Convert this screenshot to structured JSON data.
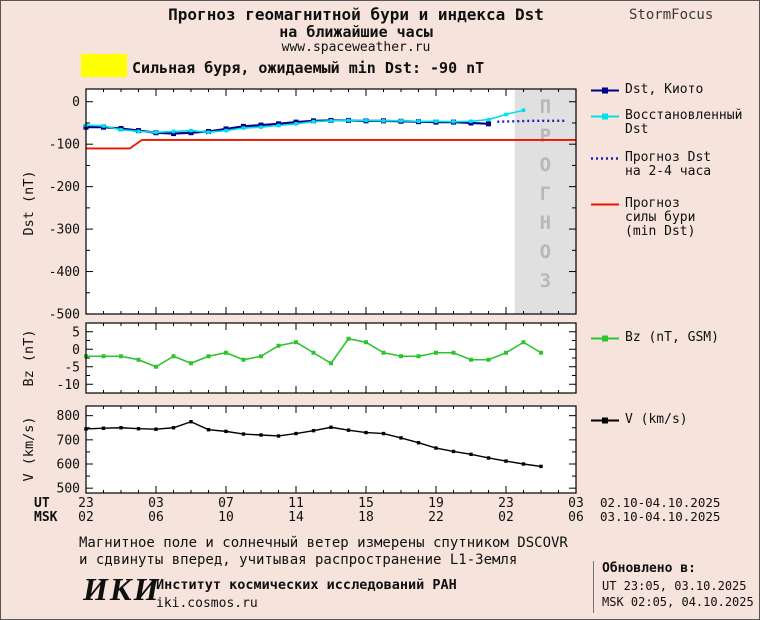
{
  "header": {
    "title_line1": "Прогноз геомагнитной бури и индекса Dst",
    "title_line2": "на ближайшие часы",
    "url": "www.spaceweather.ru",
    "brand": "StormFocus"
  },
  "alert": {
    "text": "Сильная буря, ожидаемый min Dst: -90 nT"
  },
  "watermark": "ПРОГНОЗ",
  "colors": {
    "background": "#f5e3dc",
    "plot_bg": "#ffffff",
    "frame": "#000000",
    "kyoto": "#00008b",
    "restored": "#00e0ea",
    "forecast_dst": "#2020b8",
    "storm_level": "#ee1100",
    "bz": "#2ec42e",
    "v": "#000000",
    "forecast_band": "#e0e0e0",
    "forecast_band_text": "#b8b8b8",
    "yellow_swatch": "#ffff00"
  },
  "chart_data": [
    {
      "type": "line",
      "panel": "dst",
      "ylabel": "Dst (nT)",
      "ylim": [
        -500,
        30
      ],
      "yticks": [
        0,
        -100,
        -200,
        -300,
        -400,
        -500
      ],
      "xlim_hours": [
        0,
        28
      ],
      "xticks_hours": [
        0,
        4,
        8,
        12,
        16,
        20,
        24,
        28
      ],
      "forecast_band_hours": [
        24.5,
        28
      ],
      "series": [
        {
          "name": "Dst, Киото",
          "color_key": "kyoto",
          "marker": true,
          "style": "solid",
          "x": [
            0,
            1,
            2,
            3,
            4,
            5,
            6,
            7,
            8,
            9,
            10,
            11,
            12,
            13,
            14,
            15,
            16,
            17,
            18,
            19,
            20,
            21,
            22,
            23
          ],
          "y": [
            -60,
            -60,
            -63,
            -68,
            -73,
            -75,
            -73,
            -70,
            -64,
            -58,
            -55,
            -52,
            -48,
            -45,
            -44,
            -44,
            -45,
            -45,
            -46,
            -47,
            -48,
            -48,
            -50,
            -52
          ]
        },
        {
          "name": "Восстановленный Dst",
          "color_key": "restored",
          "marker": true,
          "style": "solid",
          "x": [
            0,
            1,
            2,
            3,
            4,
            5,
            6,
            7,
            8,
            9,
            10,
            11,
            12,
            13,
            14,
            15,
            16,
            17,
            18,
            19,
            20,
            21,
            22,
            23,
            24,
            25
          ],
          "y": [
            -55,
            -57,
            -66,
            -70,
            -72,
            -70,
            -68,
            -72,
            -68,
            -62,
            -60,
            -56,
            -52,
            -47,
            -45,
            -44,
            -44,
            -45,
            -45,
            -46,
            -46,
            -47,
            -46,
            -42,
            -30,
            -20
          ]
        },
        {
          "name": "Прогноз Dst на 2-4 часа",
          "color_key": "forecast_dst",
          "marker": false,
          "style": "dotted",
          "x": [
            23.5,
            24.5,
            25.5,
            26.5,
            27.5
          ],
          "y": [
            -47,
            -46,
            -45,
            -45,
            -45
          ]
        },
        {
          "name": "Прогноз силы бури (min Dst)",
          "color_key": "storm_level",
          "marker": false,
          "style": "solid",
          "x": [
            0,
            2.5,
            3.2,
            28
          ],
          "y": [
            -110,
            -110,
            -90,
            -90
          ]
        }
      ]
    },
    {
      "type": "line",
      "panel": "bz",
      "ylabel": "Bz (nT)",
      "ylim": [
        -12.5,
        7.5
      ],
      "yticks": [
        5,
        0,
        -5,
        -10
      ],
      "xlim_hours": [
        0,
        28
      ],
      "xticks_hours": [
        0,
        4,
        8,
        12,
        16,
        20,
        24,
        28
      ],
      "series": [
        {
          "name": "Bz (nT, GSM)",
          "color_key": "bz",
          "marker": true,
          "style": "solid",
          "x": [
            0,
            1,
            2,
            3,
            4,
            5,
            6,
            7,
            8,
            9,
            10,
            11,
            12,
            13,
            14,
            15,
            16,
            17,
            18,
            19,
            20,
            21,
            22,
            23,
            24,
            25,
            26
          ],
          "y": [
            -2,
            -2,
            -2,
            -3,
            -5,
            -2,
            -4,
            -2,
            -1,
            -3,
            -2,
            1,
            2,
            -1,
            -4,
            3,
            2,
            -1,
            -2,
            -2,
            -1,
            -1,
            -3,
            -3,
            -1,
            2,
            -1
          ]
        }
      ]
    },
    {
      "type": "line",
      "panel": "v",
      "ylabel": "V (km/s)",
      "ylim": [
        480,
        840
      ],
      "yticks": [
        800,
        700,
        600,
        500
      ],
      "xlim_hours": [
        0,
        28
      ],
      "xticks_hours": [
        0,
        4,
        8,
        12,
        16,
        20,
        24,
        28
      ],
      "series": [
        {
          "name": "V (km/s)",
          "color_key": "v",
          "marker": true,
          "style": "solid",
          "x": [
            0,
            1,
            2,
            3,
            4,
            5,
            6,
            7,
            8,
            9,
            10,
            11,
            12,
            13,
            14,
            15,
            16,
            17,
            18,
            19,
            20,
            21,
            22,
            23,
            24,
            25,
            26
          ],
          "y": [
            745,
            748,
            750,
            746,
            744,
            750,
            775,
            742,
            735,
            724,
            720,
            716,
            726,
            738,
            752,
            740,
            730,
            726,
            708,
            688,
            666,
            652,
            640,
            625,
            612,
            600,
            590
          ]
        }
      ]
    }
  ],
  "legend": {
    "main": [
      {
        "lines": [
          "Dst, Киото"
        ],
        "color_key": "kyoto",
        "style": "marker"
      },
      {
        "lines": [
          "Восстановленный",
          "Dst"
        ],
        "color_key": "restored",
        "style": "marker"
      },
      {
        "lines": [
          "Прогноз Dst",
          "на 2-4 часа"
        ],
        "color_key": "forecast_dst",
        "style": "dotted"
      },
      {
        "lines": [
          "Прогноз",
          "силы бури",
          "(min Dst)"
        ],
        "color_key": "storm_level",
        "style": "line"
      }
    ],
    "bz": [
      {
        "lines": [
          "Bz (nT, GSM)"
        ],
        "color_key": "bz",
        "style": "marker"
      }
    ],
    "v": [
      {
        "lines": [
          "V (km/s)"
        ],
        "color_key": "v",
        "style": "marker"
      }
    ]
  },
  "xaxis": {
    "ut_label": "UT",
    "msk_label": "MSK",
    "ut_ticks": [
      "23",
      "03",
      "07",
      "11",
      "15",
      "19",
      "23",
      "03"
    ],
    "msk_ticks": [
      "02",
      "06",
      "10",
      "14",
      "18",
      "22",
      "02",
      "06"
    ],
    "ut_daterange": "02.10-04.10.2025",
    "msk_daterange": "03.10-04.10.2025"
  },
  "footer": {
    "note_line1": "Магнитное поле и солнечный ветер измерены спутником DSCOVR",
    "note_line2": "и сдвинуты вперед, учитывая распространение L1-Земля",
    "logo": "ИКИ",
    "institute": "Институт космических исследований РАН",
    "site": "iki.cosmos.ru",
    "updated_label": "Обновлено в:",
    "updated_ut": "UT  23:05, 03.10.2025",
    "updated_msk": "MSK 02:05, 04.10.2025"
  }
}
